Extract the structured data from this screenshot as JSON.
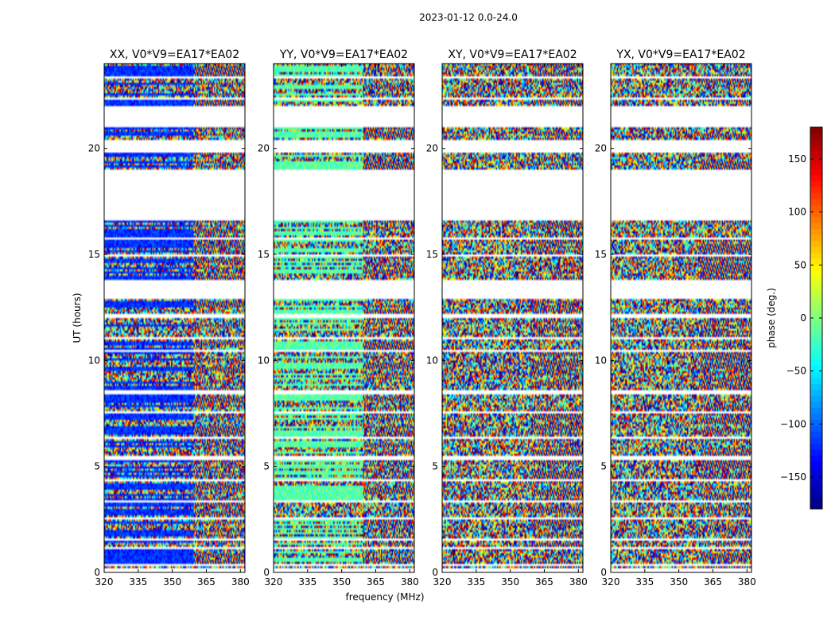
{
  "chart_data": {
    "type": "heatmap",
    "suptitle": "2023-01-12 0.0-24.0",
    "xlabel": "frequency (MHz)",
    "ylabel": "UT (hours)",
    "xlim": [
      320,
      382
    ],
    "ylim": [
      0,
      24
    ],
    "xticks": [
      320,
      335,
      350,
      365,
      380
    ],
    "yticks": [
      0,
      5,
      10,
      15,
      20
    ],
    "panels": [
      {
        "title": "XX, V0*V9=EA17*EA02",
        "base": "blue"
      },
      {
        "title": "YY, V0*V9=EA17*EA02",
        "base": "green"
      },
      {
        "title": "XY, V0*V9=EA17*EA02",
        "base": "noise"
      },
      {
        "title": "YX, V0*V9=EA17*EA02",
        "base": "noise"
      }
    ],
    "flagged_ut_ranges": [
      [
        0.05,
        0.15
      ],
      [
        0.3,
        0.45
      ],
      [
        1.1,
        1.2
      ],
      [
        1.45,
        1.6
      ],
      [
        2.45,
        2.65
      ],
      [
        3.3,
        3.45
      ],
      [
        4.3,
        4.42
      ],
      [
        5.35,
        5.5
      ],
      [
        6.3,
        6.4
      ],
      [
        7.45,
        7.6
      ],
      [
        8.45,
        8.55
      ],
      [
        10.4,
        10.55
      ],
      [
        11.0,
        11.1
      ],
      [
        12.05,
        12.15
      ],
      [
        12.95,
        13.5
      ],
      [
        13.75,
        13.85
      ],
      [
        14.95,
        15.05
      ],
      [
        15.7,
        15.8
      ],
      [
        16.6,
        16.65
      ],
      [
        18.85,
        19.0
      ],
      [
        19.85,
        20.3
      ],
      [
        21.4,
        22.0
      ],
      [
        22.3,
        22.45
      ],
      [
        23.35,
        23.45
      ]
    ],
    "gap_ut_ranges": [
      [
        13.5,
        13.75
      ],
      [
        16.65,
        18.85
      ],
      [
        20.3,
        20.45
      ],
      [
        21.0,
        21.4
      ]
    ],
    "colorbar": {
      "label": "phase (deg.)",
      "range": [
        -180,
        180
      ],
      "ticks": [
        -150,
        -100,
        -50,
        0,
        50,
        100,
        150
      ],
      "tick_labels": [
        "−150",
        "−100",
        "−50",
        "0",
        "50",
        "100",
        "150"
      ],
      "colormap": "jet"
    }
  }
}
